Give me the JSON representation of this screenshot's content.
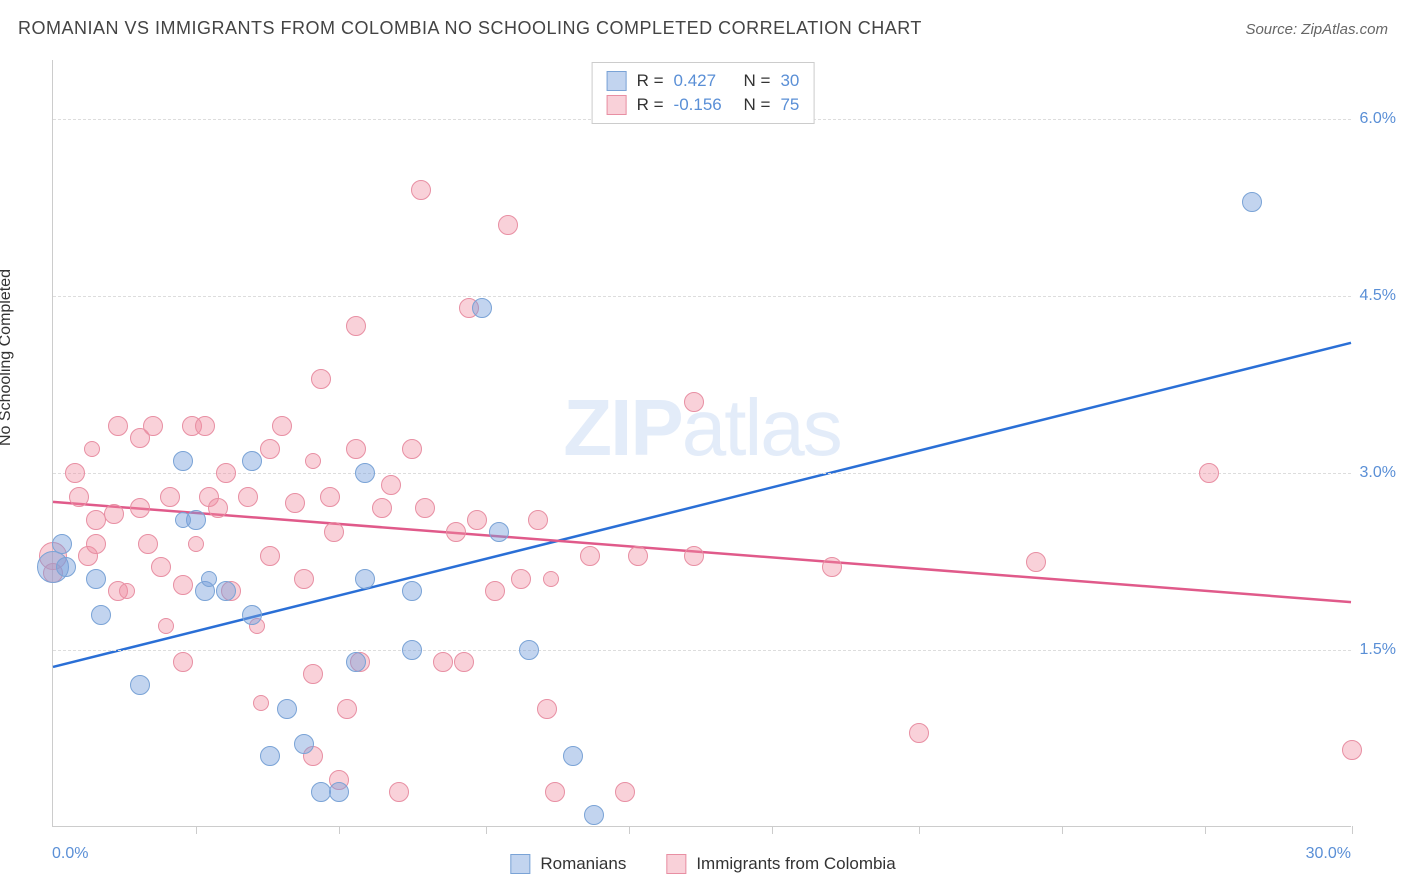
{
  "title": "ROMANIAN VS IMMIGRANTS FROM COLOMBIA NO SCHOOLING COMPLETED CORRELATION CHART",
  "source": "Source: ZipAtlas.com",
  "ylabel": "No Schooling Completed",
  "watermark_a": "ZIP",
  "watermark_b": "atlas",
  "type": "scatter",
  "xlim": [
    0,
    30
  ],
  "ylim": [
    0,
    6.5
  ],
  "x_ticks": [
    3.3,
    6.6,
    10.0,
    13.3,
    16.6,
    20.0,
    23.3,
    26.6,
    30.0
  ],
  "y_gridlines": [
    1.5,
    3.0,
    4.5,
    6.0
  ],
  "y_tick_labels": [
    "1.5%",
    "3.0%",
    "4.5%",
    "6.0%"
  ],
  "x_corner_left": "0.0%",
  "x_corner_right": "30.0%",
  "colors": {
    "series1_fill": "rgba(120,160,220,0.45)",
    "series1_stroke": "#7aa3d6",
    "series1_line": "#2a6fd6",
    "series2_fill": "rgba(240,140,160,0.40)",
    "series2_stroke": "#e88fa3",
    "series2_line": "#e05a8a",
    "axis_label_color": "#5a8fd6",
    "grid_color": "#dddddd",
    "background": "#ffffff"
  },
  "marker_radius": 10,
  "legend_top": {
    "rows": [
      {
        "r_label": "R =",
        "r": "0.427",
        "n_label": "N =",
        "n": "30",
        "swatch": 1
      },
      {
        "r_label": "R =",
        "r": "-0.156",
        "n_label": "N =",
        "n": "75",
        "swatch": 2
      }
    ]
  },
  "legend_bottom": {
    "items": [
      {
        "label": "Romanians",
        "swatch": 1
      },
      {
        "label": "Immigrants from Colombia",
        "swatch": 2
      }
    ]
  },
  "trend_lines": [
    {
      "series": 1,
      "x1": 0,
      "y1": 1.35,
      "x2": 30,
      "y2": 4.1
    },
    {
      "series": 2,
      "x1": 0,
      "y1": 2.75,
      "x2": 30,
      "y2": 1.9
    }
  ],
  "points_s1": [
    [
      0.0,
      2.2,
      16
    ],
    [
      0.3,
      2.2,
      10
    ],
    [
      0.2,
      2.4,
      10
    ],
    [
      1.0,
      2.1,
      10
    ],
    [
      1.1,
      1.8,
      10
    ],
    [
      3.0,
      3.1,
      10
    ],
    [
      3.3,
      2.6,
      10
    ],
    [
      3.5,
      2.0,
      10
    ],
    [
      3.6,
      2.1,
      8
    ],
    [
      2.0,
      1.2,
      10
    ],
    [
      4.0,
      2.0,
      10
    ],
    [
      4.6,
      3.1,
      10
    ],
    [
      4.6,
      1.8,
      10
    ],
    [
      5.0,
      0.6,
      10
    ],
    [
      5.4,
      1.0,
      10
    ],
    [
      5.8,
      0.7,
      10
    ],
    [
      6.2,
      0.3,
      10
    ],
    [
      6.6,
      0.3,
      10
    ],
    [
      7.2,
      2.1,
      10
    ],
    [
      7.0,
      1.4,
      10
    ],
    [
      9.9,
      4.4,
      10
    ],
    [
      11.0,
      1.5,
      10
    ],
    [
      12.0,
      0.6,
      10
    ],
    [
      12.5,
      0.1,
      10
    ],
    [
      7.2,
      3.0,
      10
    ],
    [
      8.3,
      2.0,
      10
    ],
    [
      10.3,
      2.5,
      10
    ],
    [
      8.3,
      1.5,
      10
    ],
    [
      3.0,
      2.6,
      8
    ],
    [
      27.7,
      5.3,
      10
    ]
  ],
  "points_s2": [
    [
      0.0,
      2.3,
      14
    ],
    [
      0.0,
      2.15,
      10
    ],
    [
      0.5,
      3.0,
      10
    ],
    [
      0.6,
      2.8,
      10
    ],
    [
      0.8,
      2.3,
      10
    ],
    [
      1.0,
      2.6,
      10
    ],
    [
      1.0,
      2.4,
      10
    ],
    [
      1.4,
      2.65,
      10
    ],
    [
      1.5,
      2.0,
      10
    ],
    [
      1.5,
      3.4,
      10
    ],
    [
      2.0,
      3.3,
      10
    ],
    [
      2.0,
      2.7,
      10
    ],
    [
      2.2,
      2.4,
      10
    ],
    [
      2.3,
      3.4,
      10
    ],
    [
      2.5,
      2.2,
      10
    ],
    [
      2.7,
      2.8,
      10
    ],
    [
      3.0,
      2.05,
      10
    ],
    [
      3.0,
      1.4,
      10
    ],
    [
      3.2,
      3.4,
      10
    ],
    [
      3.5,
      3.4,
      10
    ],
    [
      3.6,
      2.8,
      10
    ],
    [
      3.8,
      2.7,
      10
    ],
    [
      4.1,
      2.0,
      10
    ],
    [
      4.0,
      3.0,
      10
    ],
    [
      4.5,
      2.8,
      10
    ],
    [
      4.7,
      1.7,
      8
    ],
    [
      5.0,
      2.3,
      10
    ],
    [
      5.0,
      3.2,
      10
    ],
    [
      5.3,
      3.4,
      10
    ],
    [
      5.6,
      2.75,
      10
    ],
    [
      5.8,
      2.1,
      10
    ],
    [
      6.0,
      0.6,
      10
    ],
    [
      6.0,
      1.3,
      10
    ],
    [
      6.2,
      3.8,
      10
    ],
    [
      6.4,
      2.8,
      10
    ],
    [
      6.5,
      2.5,
      10
    ],
    [
      6.6,
      0.4,
      10
    ],
    [
      6.8,
      1.0,
      10
    ],
    [
      7.0,
      3.2,
      10
    ],
    [
      7.0,
      4.25,
      10
    ],
    [
      7.1,
      1.4,
      10
    ],
    [
      7.6,
      2.7,
      10
    ],
    [
      7.8,
      2.9,
      10
    ],
    [
      8.0,
      0.3,
      10
    ],
    [
      8.3,
      3.2,
      10
    ],
    [
      8.5,
      5.4,
      10
    ],
    [
      8.6,
      2.7,
      10
    ],
    [
      9.0,
      1.4,
      10
    ],
    [
      9.3,
      2.5,
      10
    ],
    [
      9.5,
      1.4,
      10
    ],
    [
      9.6,
      4.4,
      10
    ],
    [
      9.8,
      2.6,
      10
    ],
    [
      10.2,
      2.0,
      10
    ],
    [
      10.5,
      5.1,
      10
    ],
    [
      10.8,
      2.1,
      10
    ],
    [
      11.2,
      2.6,
      10
    ],
    [
      11.4,
      1.0,
      10
    ],
    [
      11.5,
      2.1,
      8
    ],
    [
      11.6,
      0.3,
      10
    ],
    [
      12.4,
      2.3,
      10
    ],
    [
      13.2,
      0.3,
      10
    ],
    [
      13.5,
      2.3,
      10
    ],
    [
      14.8,
      3.6,
      10
    ],
    [
      14.8,
      2.3,
      10
    ],
    [
      18.0,
      2.2,
      10
    ],
    [
      20.0,
      0.8,
      10
    ],
    [
      22.7,
      2.25,
      10
    ],
    [
      26.7,
      3.0,
      10
    ],
    [
      30.0,
      0.65,
      10
    ],
    [
      4.8,
      1.05,
      8
    ],
    [
      6.0,
      3.1,
      8
    ],
    [
      2.6,
      1.7,
      8
    ],
    [
      3.3,
      2.4,
      8
    ],
    [
      1.7,
      2.0,
      8
    ],
    [
      0.9,
      3.2,
      8
    ]
  ]
}
